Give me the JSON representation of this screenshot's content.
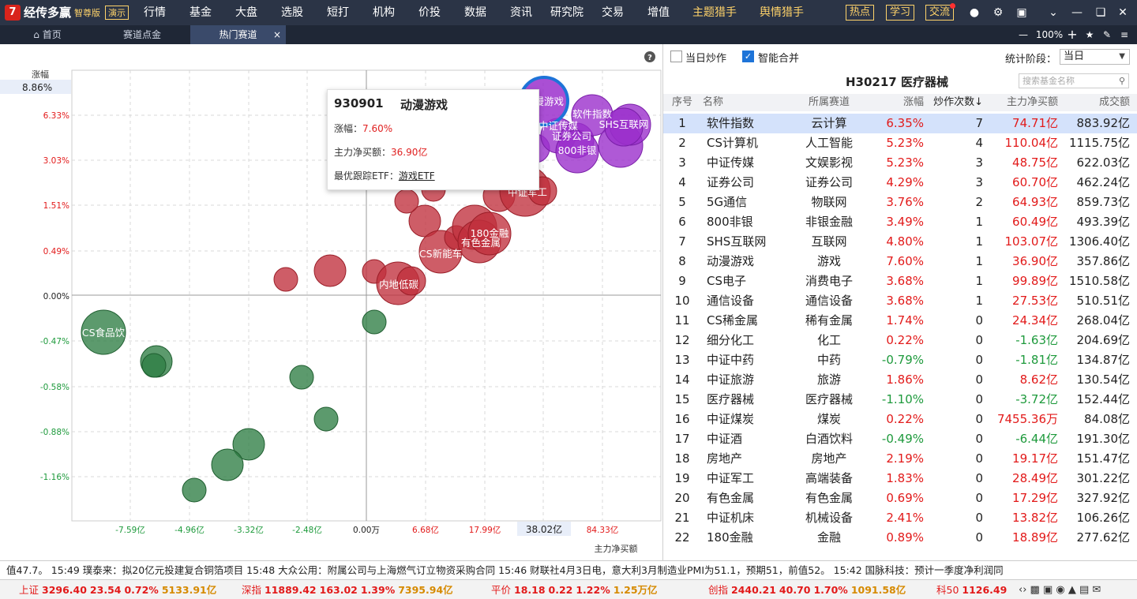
{
  "app": {
    "name": "经传多赢",
    "edition": "智尊版",
    "demo": "演示"
  },
  "nav": [
    "行情",
    "基金",
    "大盘",
    "选股",
    "短打",
    "机构",
    "价投",
    "数据",
    "资讯",
    "研究院",
    "交易",
    "增值"
  ],
  "nav_highlight": [
    "主题猎手",
    "舆情猎手"
  ],
  "top_buttons": [
    "热点",
    "学习",
    "交流"
  ],
  "tabs": {
    "home": "首页",
    "t1": "赛道点金",
    "t2": "热门赛道"
  },
  "zoom": "100%",
  "chart": {
    "y_name": "涨幅",
    "x_name": "主力净买额",
    "y_current": "8.86%",
    "x_current": "38.02亿",
    "y_ticks": [
      "6.33%",
      "3.03%",
      "1.51%",
      "0.49%",
      "0.00%",
      "-0.47%",
      "-0.58%",
      "-0.88%",
      "-1.16%"
    ],
    "x_ticks": [
      "-7.59亿",
      "-4.96亿",
      "-3.32亿",
      "-2.48亿",
      "0.00万",
      "6.68亿",
      "17.99亿",
      "38.02亿",
      "84.33亿"
    ]
  },
  "bubble_labels": {
    "b1": "动漫游戏",
    "b2": "软件指数",
    "b3": "中证传媒",
    "b4": "SHS互联网",
    "b5": "证券公司",
    "b6": "800非银",
    "b7": "中证军工",
    "b8": "180金融",
    "b9": "有色金属",
    "b10": "CS新能车",
    "b11": "内地低碳",
    "b12": "CS食品饮"
  },
  "tooltip": {
    "code": "930901",
    "name": "动漫游戏",
    "pct_label": "涨幅：",
    "pct": "7.60%",
    "buy_label": "主力净买额：",
    "buy": "36.90亿",
    "etf_label": "最优跟踪ETF：",
    "etf": "游戏ETF"
  },
  "options": {
    "c1": "当日炒作",
    "c2": "智能合并",
    "stat_label": "统计阶段：",
    "stat_value": "当日"
  },
  "table_title": "H30217  医疗器械",
  "search_placeholder": "搜索基金名称",
  "headers": {
    "no": "序号",
    "name": "名称",
    "track": "所属赛道",
    "pct": "涨幅",
    "cnt": "炒作次数↓",
    "buy": "主力净买额",
    "amt": "成交额"
  },
  "rows": [
    {
      "no": "1",
      "name": "软件指数",
      "track": "云计算",
      "pct": "6.35%",
      "cnt": "7",
      "buy": "74.71亿",
      "amt": "883.92亿"
    },
    {
      "no": "2",
      "name": "CS计算机",
      "track": "人工智能",
      "pct": "5.23%",
      "cnt": "4",
      "buy": "110.04亿",
      "amt": "1115.75亿"
    },
    {
      "no": "3",
      "name": "中证传媒",
      "track": "文娱影视",
      "pct": "5.23%",
      "cnt": "3",
      "buy": "48.75亿",
      "amt": "622.03亿"
    },
    {
      "no": "4",
      "name": "证券公司",
      "track": "证券公司",
      "pct": "4.29%",
      "cnt": "3",
      "buy": "60.70亿",
      "amt": "462.24亿"
    },
    {
      "no": "5",
      "name": "5G通信",
      "track": "物联网",
      "pct": "3.76%",
      "cnt": "2",
      "buy": "64.93亿",
      "amt": "859.73亿"
    },
    {
      "no": "6",
      "name": "800非银",
      "track": "非银金融",
      "pct": "3.49%",
      "cnt": "1",
      "buy": "60.49亿",
      "amt": "493.39亿"
    },
    {
      "no": "7",
      "name": "SHS互联网",
      "track": "互联网",
      "pct": "4.80%",
      "cnt": "1",
      "buy": "103.07亿",
      "amt": "1306.40亿"
    },
    {
      "no": "8",
      "name": "动漫游戏",
      "track": "游戏",
      "pct": "7.60%",
      "cnt": "1",
      "buy": "36.90亿",
      "amt": "357.86亿"
    },
    {
      "no": "9",
      "name": "CS电子",
      "track": "消费电子",
      "pct": "3.68%",
      "cnt": "1",
      "buy": "99.89亿",
      "amt": "1510.58亿"
    },
    {
      "no": "10",
      "name": "通信设备",
      "track": "通信设备",
      "pct": "3.68%",
      "cnt": "1",
      "buy": "27.53亿",
      "amt": "510.51亿"
    },
    {
      "no": "11",
      "name": "CS稀金属",
      "track": "稀有金属",
      "pct": "1.74%",
      "cnt": "0",
      "buy": "24.34亿",
      "amt": "268.04亿"
    },
    {
      "no": "12",
      "name": "细分化工",
      "track": "化工",
      "pct": "0.22%",
      "cnt": "0",
      "buy": "-1.63亿",
      "amt": "204.69亿"
    },
    {
      "no": "13",
      "name": "中证中药",
      "track": "中药",
      "pct": "-0.79%",
      "cnt": "0",
      "buy": "-1.81亿",
      "amt": "134.87亿"
    },
    {
      "no": "14",
      "name": "中证旅游",
      "track": "旅游",
      "pct": "1.86%",
      "cnt": "0",
      "buy": "8.62亿",
      "amt": "130.54亿"
    },
    {
      "no": "15",
      "name": "医疗器械",
      "track": "医疗器械",
      "pct": "-1.10%",
      "cnt": "0",
      "buy": "-3.72亿",
      "amt": "152.44亿"
    },
    {
      "no": "16",
      "name": "中证煤炭",
      "track": "煤炭",
      "pct": "0.22%",
      "cnt": "0",
      "buy": "7455.36万",
      "amt": "84.08亿"
    },
    {
      "no": "17",
      "name": "中证酒",
      "track": "白酒饮料",
      "pct": "-0.49%",
      "cnt": "0",
      "buy": "-6.44亿",
      "amt": "191.30亿"
    },
    {
      "no": "18",
      "name": "房地产",
      "track": "房地产",
      "pct": "2.19%",
      "cnt": "0",
      "buy": "19.17亿",
      "amt": "151.47亿"
    },
    {
      "no": "19",
      "name": "中证军工",
      "track": "高端装备",
      "pct": "1.83%",
      "cnt": "0",
      "buy": "28.49亿",
      "amt": "301.22亿"
    },
    {
      "no": "20",
      "name": "有色金属",
      "track": "有色金属",
      "pct": "0.69%",
      "cnt": "0",
      "buy": "17.29亿",
      "amt": "327.92亿"
    },
    {
      "no": "21",
      "name": "中证机床",
      "track": "机械设备",
      "pct": "2.41%",
      "cnt": "0",
      "buy": "13.82亿",
      "amt": "106.26亿"
    },
    {
      "no": "22",
      "name": "180金融",
      "track": "金融",
      "pct": "0.89%",
      "cnt": "0",
      "buy": "18.89亿",
      "amt": "277.62亿"
    }
  ],
  "news": "值47.7。    15:49 璞泰来：拟20亿元投建复合铜箔项目      15:48 大众公用：附属公司与上海燃气订立物资采购合同      15:46 财联社4月3日电，意大利3月制造业PMI为51.1，预期51，前值52。      15:42 国脉科技：预计一季度净利润同",
  "indices": [
    {
      "n": "上证",
      "v": "3296.40",
      "c": "23.54",
      "p": "0.72%",
      "a": "5133.91亿"
    },
    {
      "n": "深指",
      "v": "11889.42",
      "c": "163.02",
      "p": "1.39%",
      "a": "7395.94亿"
    },
    {
      "n": "平价",
      "v": "18.18",
      "c": "0.22",
      "p": "1.22%",
      "a": "1.25万亿"
    },
    {
      "n": "创指",
      "v": "2440.21",
      "c": "40.70",
      "p": "1.70%",
      "a": "1091.58亿"
    },
    {
      "n": "科50",
      "v": "1126.49",
      "c": "",
      "p": "",
      "a": ""
    }
  ]
}
